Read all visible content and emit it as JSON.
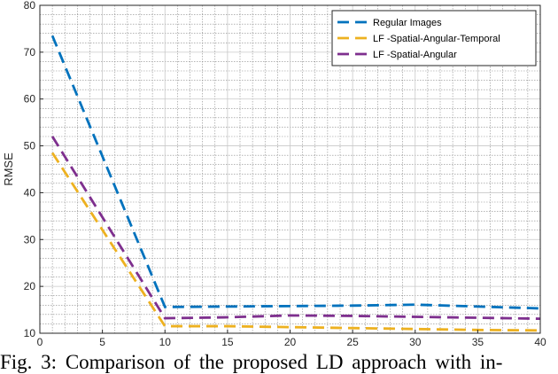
{
  "caption": "Fig. 3: Comparison of the proposed LD approach with in-",
  "chart_data": {
    "type": "line",
    "ylabel": "RMSE",
    "xlabel": "",
    "xlim": [
      0,
      40
    ],
    "ylim": [
      10,
      80
    ],
    "xticks": [
      0,
      5,
      10,
      15,
      20,
      25,
      30,
      35,
      40
    ],
    "yticks": [
      10,
      20,
      30,
      40,
      50,
      60,
      70,
      80
    ],
    "grid": true,
    "minor_grid": true,
    "legend_position": "top-right",
    "series": [
      {
        "name": "Regular Images",
        "color": "#0072BD",
        "x": [
          1,
          10,
          15,
          20,
          25,
          30,
          35,
          40
        ],
        "y": [
          73.5,
          15.6,
          15.7,
          15.8,
          15.9,
          16.1,
          15.7,
          15.3
        ]
      },
      {
        "name": "LF -Spatial-Angular-Temporal",
        "color": "#EDB120",
        "x": [
          1,
          10,
          15,
          20,
          25,
          30,
          35,
          40
        ],
        "y": [
          48.5,
          11.5,
          11.5,
          11.3,
          11.1,
          10.9,
          10.7,
          10.6
        ]
      },
      {
        "name": "LF -Spatial-Angular",
        "color": "#7E2F8E",
        "x": [
          1,
          10,
          15,
          20,
          25,
          30,
          35,
          40
        ],
        "y": [
          52,
          13.2,
          13.4,
          13.8,
          13.7,
          13.5,
          13.3,
          13.1
        ]
      }
    ]
  }
}
